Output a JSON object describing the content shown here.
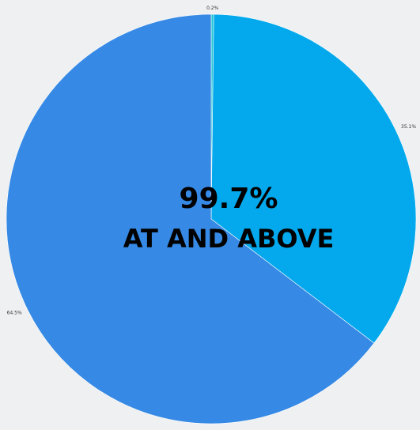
{
  "chart_data": {
    "type": "pie",
    "slices": [
      {
        "label": "0.2%",
        "value": 0.2,
        "color": "#1ec6d6"
      },
      {
        "label": "35.1%",
        "value": 35.1,
        "color": "#03a9ec"
      },
      {
        "label": "64.5%",
        "value": 64.5,
        "color": "#3689e4"
      }
    ],
    "start_at": "top",
    "direction": "clockwise"
  },
  "center": {
    "line1": "99.7%",
    "line2": "AT AND ABOVE"
  },
  "colors": {
    "background": "#eff0f2",
    "slice_border": "#ffffff"
  }
}
